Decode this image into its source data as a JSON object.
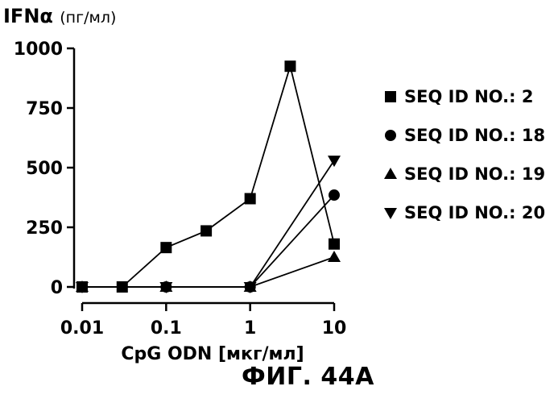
{
  "chart_data": {
    "type": "line",
    "title": "",
    "ylabel": "IFNα",
    "ylabel_unit": "(пг/мл)",
    "xlabel": "CpG ODN [мкг/мл]",
    "figure_label": "ФИГ. 44А",
    "x_scale": "log",
    "xlim": [
      0.01,
      10
    ],
    "ylim": [
      0,
      1000
    ],
    "x_ticks": [
      0.01,
      0.1,
      1,
      10
    ],
    "x_tick_labels": [
      "0.01",
      "0.1",
      "1",
      "10"
    ],
    "y_ticks": [
      0,
      250,
      500,
      750,
      1000
    ],
    "y_tick_labels": [
      "0",
      "250",
      "500",
      "750",
      "1000"
    ],
    "grid": false,
    "legend_position": "right",
    "series": [
      {
        "name": "SEQ ID NO.: 2",
        "marker": "square",
        "points": [
          {
            "x": 0.01,
            "y": 0
          },
          {
            "x": 0.03,
            "y": 0
          },
          {
            "x": 0.1,
            "y": 165
          },
          {
            "x": 0.3,
            "y": 235
          },
          {
            "x": 1,
            "y": 370
          },
          {
            "x": 3,
            "y": 925
          },
          {
            "x": 10,
            "y": 180
          }
        ]
      },
      {
        "name": "SEQ ID NO.: 18",
        "marker": "circle",
        "points": [
          {
            "x": 0.01,
            "y": 0
          },
          {
            "x": 0.1,
            "y": 0
          },
          {
            "x": 1,
            "y": 0
          },
          {
            "x": 10,
            "y": 385
          }
        ]
      },
      {
        "name": "SEQ ID NO.: 19",
        "marker": "triangle-up",
        "points": [
          {
            "x": 0.01,
            "y": 0
          },
          {
            "x": 0.1,
            "y": 0
          },
          {
            "x": 1,
            "y": 0
          },
          {
            "x": 10,
            "y": 125
          }
        ]
      },
      {
        "name": "SEQ ID NO.: 20",
        "marker": "triangle-down",
        "points": [
          {
            "x": 0.01,
            "y": 0
          },
          {
            "x": 0.1,
            "y": 0
          },
          {
            "x": 1,
            "y": 0
          },
          {
            "x": 10,
            "y": 530
          }
        ]
      }
    ]
  }
}
